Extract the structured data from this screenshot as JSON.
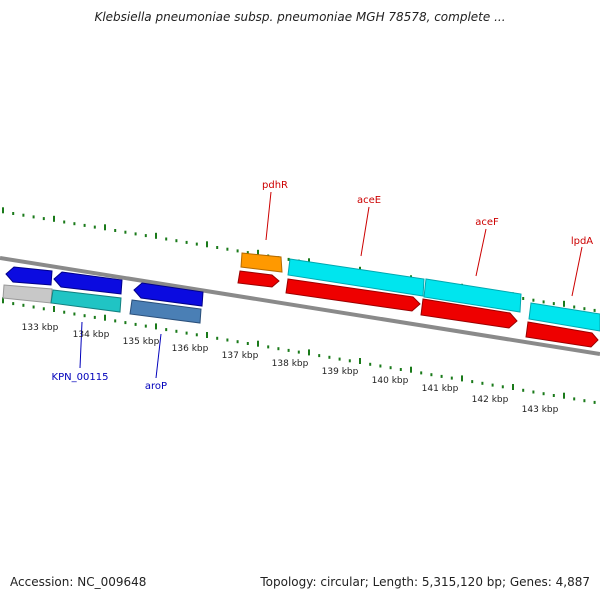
{
  "header": {
    "title": "Klebsiella pneumoniae subsp. pneumoniae MGH 78578, complete ..."
  },
  "footer": {
    "accession": "Accession: NC_009648",
    "summary": "Topology: circular; Length: 5,315,120 bp; Genes: 4,887"
  },
  "scale": {
    "unit": "kbp",
    "ticks": [
      "133 kbp",
      "134 kbp",
      "135 kbp",
      "136 kbp",
      "137 kbp",
      "138 kbp",
      "139 kbp",
      "140 kbp",
      "141 kbp",
      "142 kbp",
      "143 kbp"
    ]
  },
  "genes": {
    "labels": [
      {
        "name": "pdhR",
        "color": "#cc0000"
      },
      {
        "name": "aceE",
        "color": "#cc0000"
      },
      {
        "name": "aceF",
        "color": "#cc0000"
      },
      {
        "name": "lpdA",
        "color": "#cc0000"
      },
      {
        "name": "KPN_00115",
        "color": "#0000bb"
      },
      {
        "name": "aroP",
        "color": "#0000bb"
      }
    ]
  },
  "colors": {
    "backbone": "#888888",
    "tick_marks": "#1a7a1a",
    "gene_blue": "#0b0be0",
    "gene_red": "#ee0000",
    "gene_cyan": "#00e5ee",
    "gene_teal": "#20c4c4",
    "gene_orange": "#ff9900",
    "gene_steel": "#4a7fb5",
    "gene_grey": "#c8c8c8"
  }
}
